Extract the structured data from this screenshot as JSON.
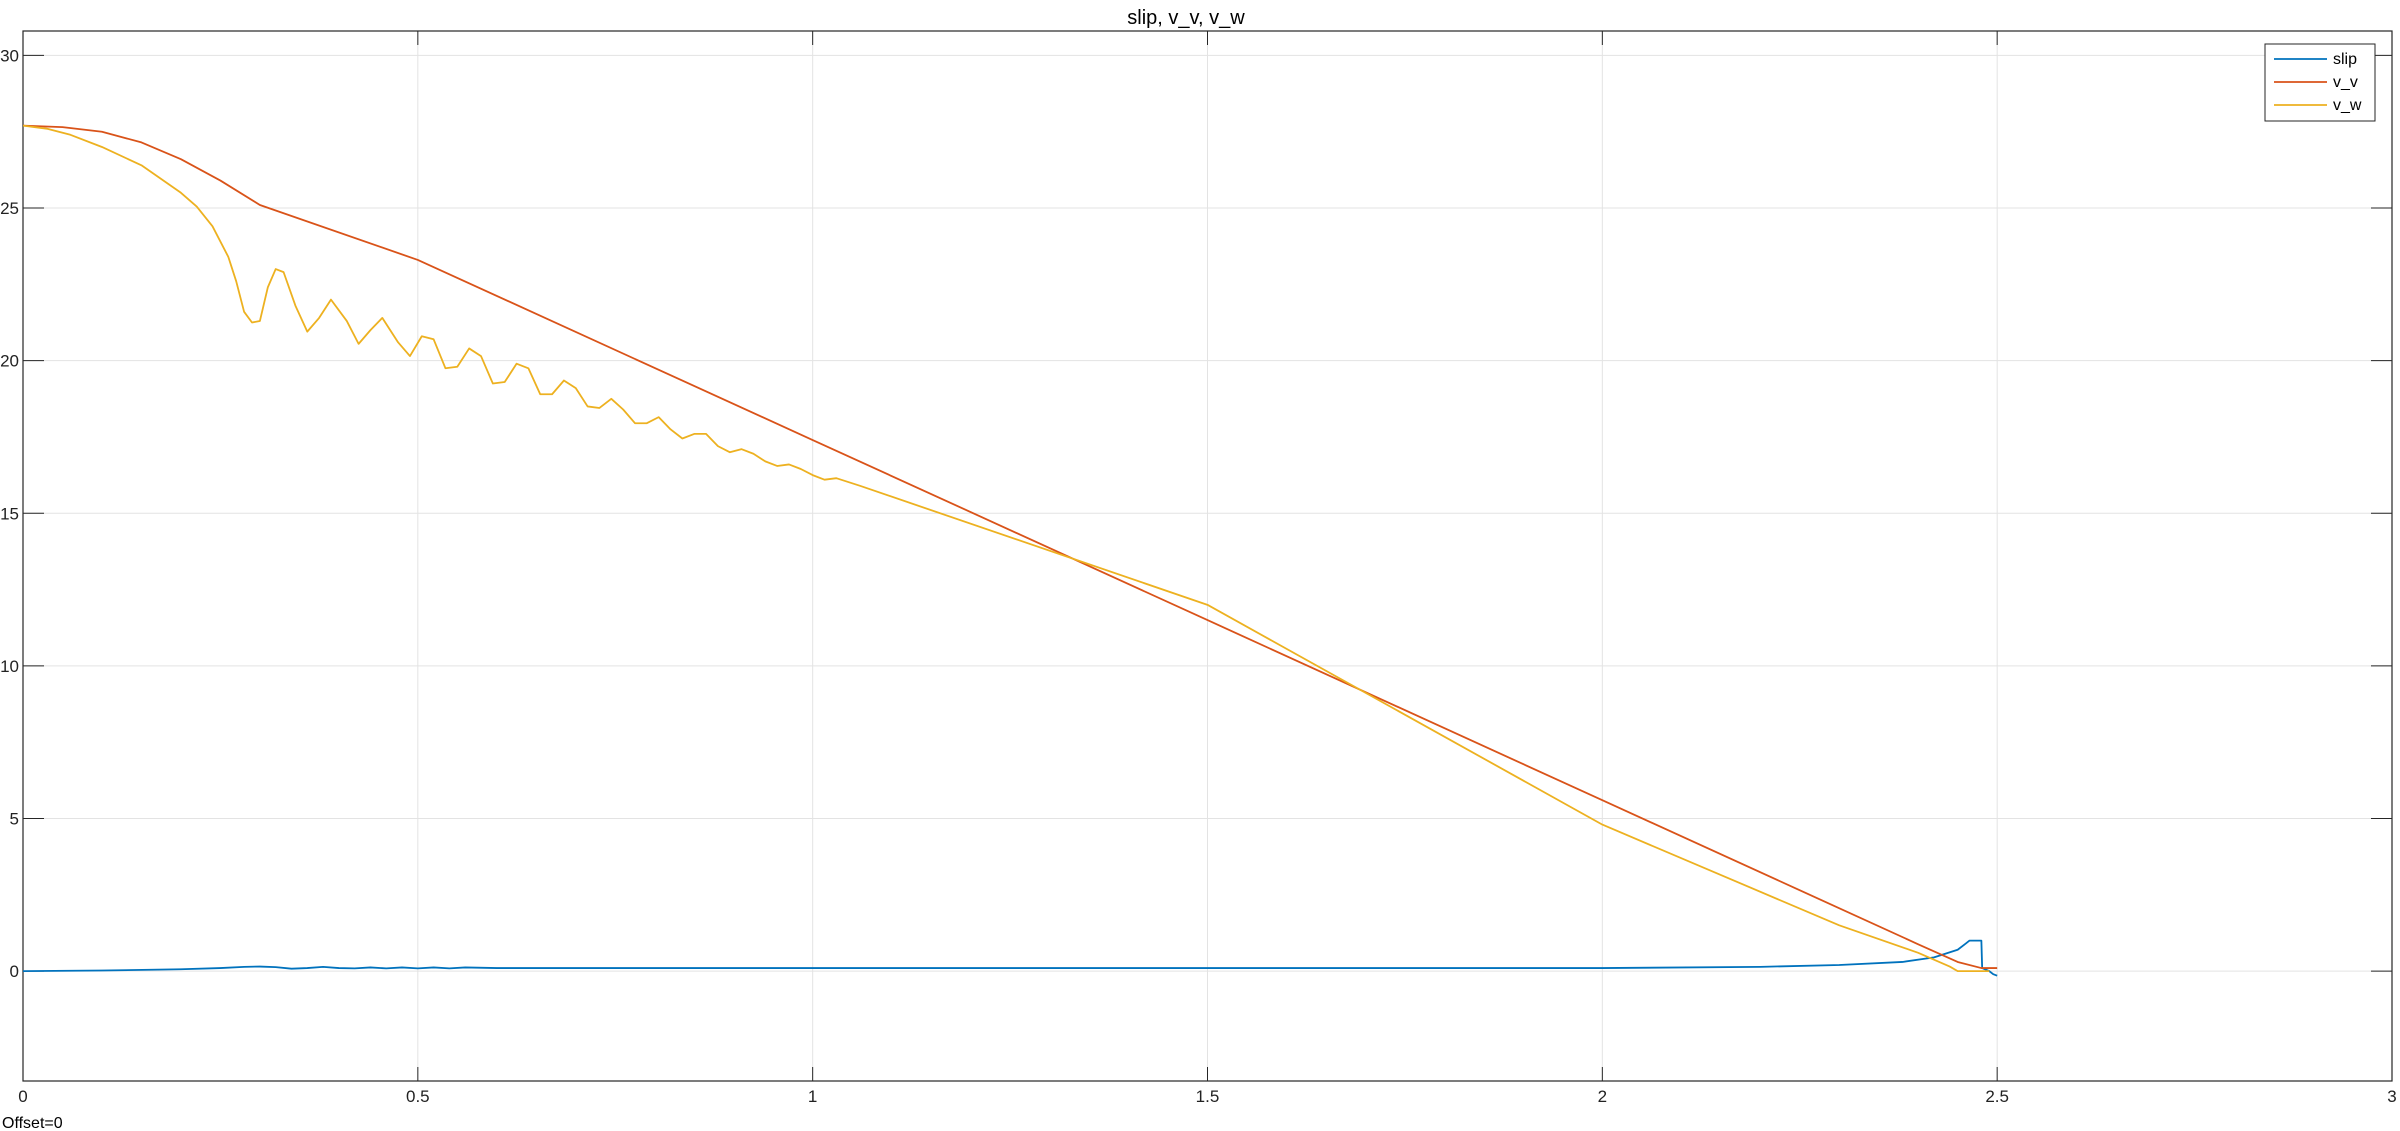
{
  "chart_data": {
    "type": "line",
    "title": "slip, v_v, v_w",
    "xlabel": "",
    "ylabel": "",
    "xlim": [
      0,
      3
    ],
    "ylim": [
      -3.6,
      30.8
    ],
    "xticks": [
      0,
      0.5,
      1,
      1.5,
      2,
      2.5,
      3
    ],
    "xtick_labels": [
      "0",
      "0.5",
      "1",
      "1.5",
      "2",
      "2.5",
      "3"
    ],
    "yticks": [
      0,
      5,
      10,
      15,
      20,
      25,
      30
    ],
    "ytick_labels": [
      "0",
      "5",
      "10",
      "15",
      "20",
      "25",
      "30"
    ],
    "grid": true,
    "legend_position": "top-right",
    "footer_text": "Offset=0",
    "series": [
      {
        "name": "slip",
        "color": "#0072BD",
        "points": [
          [
            0,
            0
          ],
          [
            0.1,
            0.02
          ],
          [
            0.2,
            0.06
          ],
          [
            0.25,
            0.1
          ],
          [
            0.28,
            0.14
          ],
          [
            0.3,
            0.15
          ],
          [
            0.32,
            0.13
          ],
          [
            0.34,
            0.08
          ],
          [
            0.36,
            0.1
          ],
          [
            0.38,
            0.14
          ],
          [
            0.4,
            0.1
          ],
          [
            0.42,
            0.09
          ],
          [
            0.44,
            0.12
          ],
          [
            0.46,
            0.09
          ],
          [
            0.48,
            0.12
          ],
          [
            0.5,
            0.09
          ],
          [
            0.52,
            0.12
          ],
          [
            0.54,
            0.09
          ],
          [
            0.56,
            0.12
          ],
          [
            0.6,
            0.1
          ],
          [
            0.7,
            0.1
          ],
          [
            0.9,
            0.1
          ],
          [
            1.5,
            0.1
          ],
          [
            2.0,
            0.1
          ],
          [
            2.2,
            0.14
          ],
          [
            2.3,
            0.2
          ],
          [
            2.38,
            0.3
          ],
          [
            2.42,
            0.45
          ],
          [
            2.45,
            0.7
          ],
          [
            2.46,
            0.9
          ],
          [
            2.465,
            1.0
          ],
          [
            2.48,
            1.0
          ],
          [
            2.481,
            0.1
          ],
          [
            2.49,
            0.0
          ],
          [
            2.495,
            -0.1
          ],
          [
            2.5,
            -0.15
          ]
        ]
      },
      {
        "name": "v_v",
        "color": "#D95319",
        "points": [
          [
            0,
            27.7
          ],
          [
            0.05,
            27.65
          ],
          [
            0.1,
            27.5
          ],
          [
            0.15,
            27.15
          ],
          [
            0.2,
            26.6
          ],
          [
            0.25,
            25.9
          ],
          [
            0.3,
            25.1
          ],
          [
            0.5,
            23.3
          ],
          [
            1.0,
            17.4
          ],
          [
            1.5,
            11.5
          ],
          [
            2.0,
            5.6
          ],
          [
            2.4,
            0.88
          ],
          [
            2.45,
            0.3
          ],
          [
            2.48,
            0.1
          ],
          [
            2.5,
            0.1
          ]
        ]
      },
      {
        "name": "v_w",
        "color": "#EDB120",
        "points": [
          [
            0,
            27.7
          ],
          [
            0.03,
            27.6
          ],
          [
            0.06,
            27.4
          ],
          [
            0.1,
            27.0
          ],
          [
            0.15,
            26.4
          ],
          [
            0.2,
            25.5
          ],
          [
            0.22,
            25.05
          ],
          [
            0.24,
            24.4
          ],
          [
            0.26,
            23.4
          ],
          [
            0.27,
            22.6
          ],
          [
            0.28,
            21.6
          ],
          [
            0.29,
            21.25
          ],
          [
            0.3,
            21.3
          ],
          [
            0.31,
            22.4
          ],
          [
            0.32,
            23.0
          ],
          [
            0.33,
            22.9
          ],
          [
            0.345,
            21.8
          ],
          [
            0.36,
            20.95
          ],
          [
            0.375,
            21.4
          ],
          [
            0.39,
            22.0
          ],
          [
            0.41,
            21.3
          ],
          [
            0.425,
            20.55
          ],
          [
            0.44,
            21.0
          ],
          [
            0.455,
            21.4
          ],
          [
            0.475,
            20.6
          ],
          [
            0.49,
            20.15
          ],
          [
            0.505,
            20.8
          ],
          [
            0.52,
            20.7
          ],
          [
            0.535,
            19.75
          ],
          [
            0.55,
            19.8
          ],
          [
            0.565,
            20.4
          ],
          [
            0.58,
            20.15
          ],
          [
            0.595,
            19.25
          ],
          [
            0.61,
            19.3
          ],
          [
            0.625,
            19.9
          ],
          [
            0.64,
            19.75
          ],
          [
            0.655,
            18.9
          ],
          [
            0.67,
            18.9
          ],
          [
            0.685,
            19.35
          ],
          [
            0.7,
            19.1
          ],
          [
            0.715,
            18.5
          ],
          [
            0.73,
            18.45
          ],
          [
            0.745,
            18.75
          ],
          [
            0.76,
            18.4
          ],
          [
            0.775,
            17.95
          ],
          [
            0.79,
            17.95
          ],
          [
            0.805,
            18.15
          ],
          [
            0.82,
            17.75
          ],
          [
            0.835,
            17.45
          ],
          [
            0.85,
            17.6
          ],
          [
            0.865,
            17.6
          ],
          [
            0.88,
            17.2
          ],
          [
            0.895,
            17.0
          ],
          [
            0.91,
            17.1
          ],
          [
            0.925,
            16.95
          ],
          [
            0.94,
            16.7
          ],
          [
            0.955,
            16.55
          ],
          [
            0.97,
            16.6
          ],
          [
            0.985,
            16.45
          ],
          [
            1.0,
            16.25
          ],
          [
            1.015,
            16.1
          ],
          [
            1.03,
            16.15
          ],
          [
            1.06,
            15.9
          ],
          [
            1.5,
            12.0
          ],
          [
            2.0,
            4.8
          ],
          [
            2.3,
            1.5
          ],
          [
            2.4,
            0.6
          ],
          [
            2.44,
            0.15
          ],
          [
            2.45,
            0.0
          ],
          [
            2.48,
            0.0
          ],
          [
            2.49,
            0.0
          ]
        ]
      }
    ]
  }
}
